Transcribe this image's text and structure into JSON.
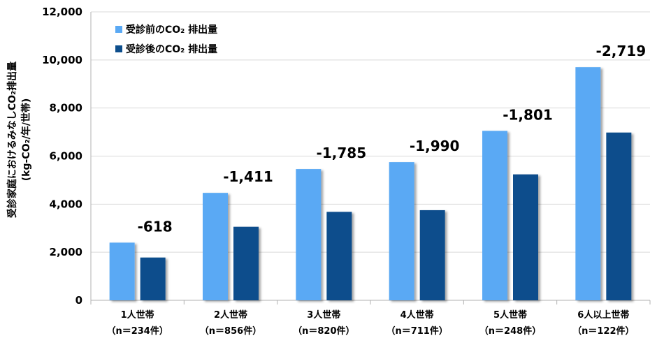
{
  "chart_data": {
    "type": "bar",
    "categories": [
      "1人世帯",
      "2人世帯",
      "3人世帯",
      "4人世帯",
      "5人世帯",
      "6人以上世帯"
    ],
    "category_sub": [
      "（n＝234件）",
      "（n＝856件）",
      "（n＝820件）",
      "（n＝711件）",
      "（n＝248件）",
      "（n＝122件）"
    ],
    "series": [
      {
        "name": "受診前のCO₂ 排出量",
        "values": [
          2400,
          4470,
          5460,
          5750,
          7050,
          9700
        ],
        "color": "#5aa9f4"
      },
      {
        "name": "受診後のCO₂ 排出量",
        "values": [
          1780,
          3060,
          3680,
          3750,
          5240,
          6980
        ],
        "color": "#0d4e8c"
      }
    ],
    "annotations": [
      "-618",
      "-1,411",
      "-1,785",
      "-1,990",
      "-1,801",
      "-2,719"
    ],
    "ylabel_line1": "受診家庭におけるみなしCO₂排出量",
    "ylabel_line2": "(kg-CO₂/年/世帯)",
    "ylim": [
      0,
      12000
    ],
    "yticks": [
      0,
      2000,
      4000,
      6000,
      8000,
      10000,
      12000
    ],
    "ytick_labels": [
      "0",
      "2,000",
      "4,000",
      "6,000",
      "8,000",
      "10,000",
      "12,000"
    ],
    "grid": true,
    "legend_position": "top-left"
  }
}
